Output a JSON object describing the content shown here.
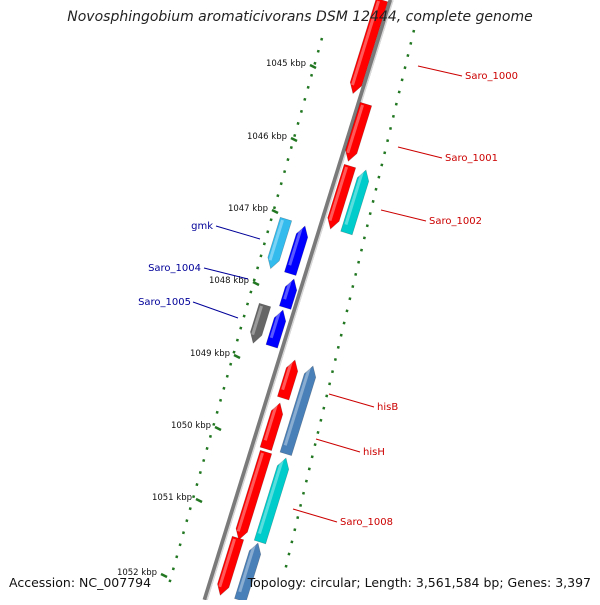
{
  "title": "Novosphingobium aromaticivorans DSM 12444, complete genome",
  "footer": {
    "accession": "Accession: NC_007794",
    "summary": "Topology: circular; Length: 3,561,584 bp; Genes: 3,397"
  },
  "colors": {
    "forward_gene": "#ff0000",
    "teal_gene": "#00cccc",
    "light_blue_gene": "#33bbee",
    "blue_gene": "#0000ff",
    "steel_gene": "#4a80b8",
    "gray_gene": "#666666",
    "label_red": "#cc0000",
    "label_blue": "#000099",
    "tick_green": "#227722"
  },
  "ruler": {
    "ticks": [
      "1045 kbp",
      "1046 kbp",
      "1047 kbp",
      "1048 kbp",
      "1049 kbp",
      "1050 kbp",
      "1051 kbp",
      "1052 kbp"
    ]
  },
  "genes": [
    {
      "label": "Saro_1000",
      "track": "outer",
      "color": "forward_gene",
      "label_color": "label_red"
    },
    {
      "label": "Saro_1001",
      "track": "outer",
      "color": "forward_gene",
      "label_color": "label_red"
    },
    {
      "label": "Saro_1002",
      "track": "outer",
      "color": "teal_gene",
      "label_color": "label_red"
    },
    {
      "label": "gmk",
      "track": "inner",
      "color": "light_blue_gene",
      "label_color": "label_blue"
    },
    {
      "label": "Saro_1004",
      "track": "inner",
      "color": "blue_gene",
      "label_color": "label_blue"
    },
    {
      "label": "Saro_1005",
      "track": "inner",
      "color": "gray_gene",
      "label_color": "label_blue"
    },
    {
      "label": "hisB",
      "track": "inner",
      "color": "steel_gene",
      "label_color": "label_red"
    },
    {
      "label": "hisH",
      "track": "inner",
      "color": "forward_gene",
      "label_color": "label_red"
    },
    {
      "label": "Saro_1008",
      "track": "inner",
      "color": "teal_gene",
      "label_color": "label_red"
    }
  ]
}
